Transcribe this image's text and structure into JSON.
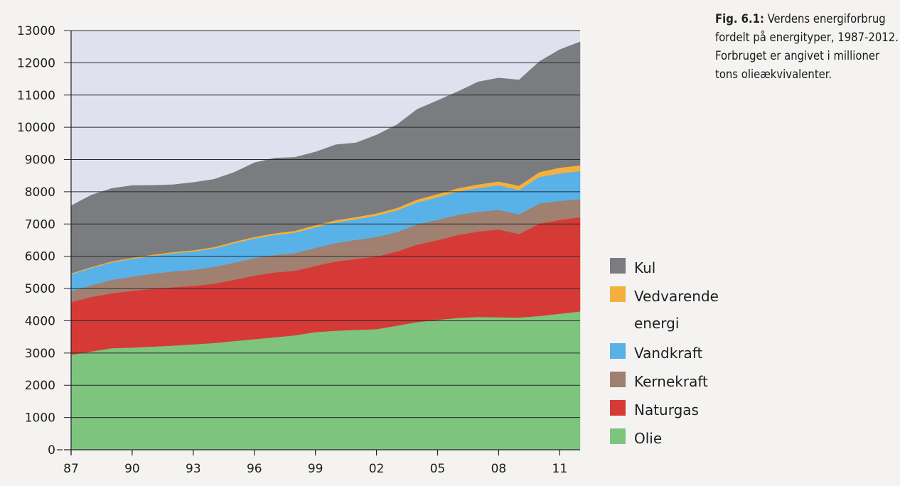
{
  "caption": {
    "fig_label": "Fig. 6.1:",
    "text": "Verdens energiforbrug fordelt på energityper, 1987-2012. Forbruget er angivet i millioner tons olieækvivalenter."
  },
  "chart_data": {
    "type": "area",
    "stacked": true,
    "title": "",
    "xlabel": "",
    "ylabel": "",
    "x": [
      1987,
      1988,
      1989,
      1990,
      1991,
      1992,
      1993,
      1994,
      1995,
      1996,
      1997,
      1998,
      1999,
      2000,
      2001,
      2002,
      2003,
      2004,
      2005,
      2006,
      2007,
      2008,
      2009,
      2010,
      2011,
      2012
    ],
    "x_tick_values": [
      1987,
      1990,
      1993,
      1996,
      1999,
      2002,
      2005,
      2008,
      2011
    ],
    "x_tick_labels": [
      "87",
      "90",
      "93",
      "96",
      "99",
      "02",
      "05",
      "08",
      "11"
    ],
    "ylim": [
      0,
      13000
    ],
    "y_ticks": [
      0,
      1000,
      2000,
      3000,
      4000,
      5000,
      6000,
      7000,
      8000,
      9000,
      10000,
      11000,
      12000,
      13000
    ],
    "grid": "horizontal",
    "legend_position": "right",
    "series": [
      {
        "name": "Olie",
        "color": "#7fc47e",
        "values": [
          2950,
          3050,
          3150,
          3170,
          3200,
          3230,
          3270,
          3310,
          3370,
          3430,
          3490,
          3550,
          3650,
          3690,
          3720,
          3740,
          3850,
          3960,
          4030,
          4090,
          4120,
          4110,
          4100,
          4150,
          4220,
          4290
        ]
      },
      {
        "name": "Naturgas",
        "color": "#d63a36",
        "values": [
          1630,
          1690,
          1700,
          1760,
          1790,
          1810,
          1810,
          1840,
          1900,
          1970,
          2010,
          2000,
          2050,
          2150,
          2200,
          2250,
          2300,
          2400,
          2470,
          2570,
          2650,
          2720,
          2590,
          2860,
          2910,
          2920
        ]
      },
      {
        "name": "Kernekraft",
        "color": "#a08070",
        "values": [
          340,
          360,
          420,
          440,
          470,
          490,
          500,
          520,
          530,
          540,
          540,
          550,
          560,
          570,
          590,
          610,
          600,
          630,
          630,
          630,
          610,
          610,
          610,
          630,
          590,
          560
        ]
      },
      {
        "name": "Vandkraft",
        "color": "#58b2e8",
        "values": [
          520,
          540,
          540,
          550,
          550,
          560,
          570,
          570,
          600,
          610,
          620,
          630,
          640,
          640,
          640,
          660,
          670,
          680,
          700,
          720,
          740,
          760,
          760,
          820,
          850,
          870
        ]
      },
      {
        "name": "Vedvarende energi",
        "color": "#f4b03c",
        "values": [
          30,
          30,
          35,
          35,
          40,
          40,
          40,
          45,
          50,
          50,
          55,
          60,
          65,
          70,
          70,
          70,
          80,
          90,
          100,
          100,
          110,
          120,
          130,
          150,
          180,
          180
        ]
      },
      {
        "name": "Kul",
        "color": "#7a7c7f",
        "values": [
          2100,
          2230,
          2260,
          2240,
          2150,
          2090,
          2100,
          2100,
          2150,
          2300,
          2330,
          2280,
          2270,
          2340,
          2300,
          2430,
          2580,
          2800,
          2900,
          3000,
          3180,
          3210,
          3280,
          3430,
          3660,
          3830
        ]
      }
    ]
  }
}
